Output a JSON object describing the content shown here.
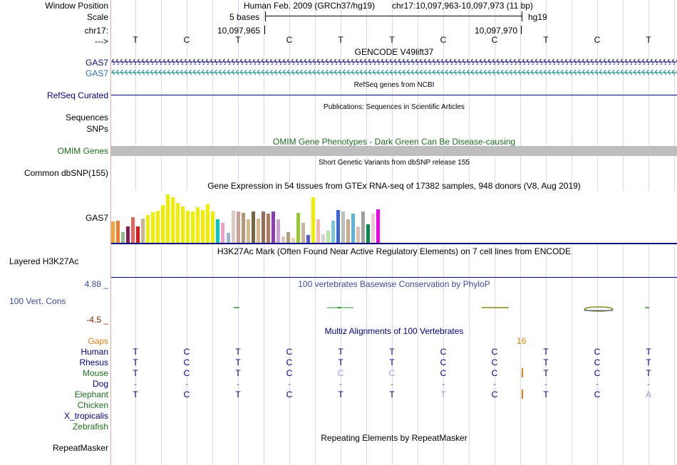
{
  "header": {
    "assembly_label": "Human Feb. 2009 (GRCh37/hg19)",
    "position_label": "chr17:10,097,963-10,097,973 (11 bp)",
    "scale_label": "5 bases",
    "assembly_tag": "hg19",
    "coord_left": "10,097,965",
    "coord_right": "10,097,970"
  },
  "side_labels": {
    "window_position": "Window Position",
    "scale": "Scale",
    "chrom": "chr17:",
    "strand": "--->",
    "gas7_a": "GAS7",
    "gas7_b": "GAS7",
    "refseq": "RefSeq Curated",
    "sequences": "Sequences",
    "snps": "SNPs",
    "omim": "OMIM Genes",
    "dbsnp": "Common dbSNP(155)",
    "gtex_gene": "GAS7",
    "h3k27ac": "Layered H3K27Ac",
    "phylop_max": "4.88 _",
    "cons": "100 Vert. Cons",
    "phylop_min": "-4.5 _",
    "gaps": "Gaps",
    "human": "Human",
    "rhesus": "Rhesus",
    "mouse": "Mouse",
    "dog": "Dog",
    "elephant": "Elephant",
    "chicken": "Chicken",
    "xtrop": "X_tropicalis",
    "zebrafish": "Zebrafish",
    "repeatmasker": "RepeatMasker"
  },
  "track_titles": {
    "gencode": "GENCODE V49lift37",
    "refseq": "RefSeq genes from NCBI",
    "publications": "Publications: Sequences in Scientific Articles",
    "omim": "OMIM Gene Phenotypes - Dark Green Can Be Disease-causing",
    "dbsnp": "Short Genetic Variants from dbSNP release 155",
    "gtex": "Gene Expression in 54 tissues from GTEx RNA-seq of 17382 samples, 948 donors (V8, Aug 2019)",
    "h3k27ac": "H3K27Ac Mark (Often Found Near Active Regulatory Elements) on 7 cell lines from ENCODE",
    "phylop": "100 vertebrates Basewise Conservation by PhyloP",
    "multiz": "Multiz Alignments of 100 Vertebrates",
    "repeatmasker": "Repeating Elements by RepeatMasker"
  },
  "gap_count": "16",
  "sequence": {
    "ruler": [
      "T",
      "C",
      "T",
      "C",
      "T",
      "T",
      "C",
      "C",
      "T",
      "C",
      "T"
    ],
    "human": [
      "T",
      "C",
      "T",
      "C",
      "T",
      "T",
      "C",
      "C",
      "T",
      "C",
      "T"
    ],
    "rhesus": [
      "T",
      "C",
      "T",
      "C",
      "T",
      "T",
      "C",
      "C",
      "T",
      "C",
      "T"
    ],
    "mouse": [
      "T",
      "C",
      "T",
      "C",
      "C",
      "C",
      "C",
      "C",
      "T",
      "C",
      "T"
    ],
    "dog": [
      "-",
      "-",
      "-",
      "-",
      "-",
      "-",
      "-",
      "-",
      "-",
      "-",
      "-"
    ],
    "elephant": [
      "T",
      "C",
      "T",
      "C",
      "T",
      "T",
      "T",
      "C",
      "T",
      "C",
      "A"
    ]
  },
  "colors": {
    "track_label": "#000080",
    "gencode_blue": "#0c0c78",
    "gencode_teal": "#0e8a8a",
    "omim_gray": "#bebebe",
    "omim_text": "#1c6e1c",
    "phylop_blue": "#3e4c9a",
    "gap_orange": "#e08010",
    "grid": "#d8d8f0"
  },
  "gtex_bars": [
    {
      "v": 0.41,
      "c": "#f4a23c"
    },
    {
      "v": 0.43,
      "c": "#f47a2c"
    },
    {
      "v": 0.21,
      "c": "#8fbc8f"
    },
    {
      "v": 0.32,
      "c": "#8b1a52"
    },
    {
      "v": 0.49,
      "c": "#e8645c"
    },
    {
      "v": 0.31,
      "c": "#dd1919"
    },
    {
      "v": 0.46,
      "c": "#c8b496"
    },
    {
      "v": 0.53,
      "c": "#eeee00"
    },
    {
      "v": 0.59,
      "c": "#eeee00"
    },
    {
      "v": 0.62,
      "c": "#eeee00"
    },
    {
      "v": 0.72,
      "c": "#eeee00"
    },
    {
      "v": 0.93,
      "c": "#eeee00"
    },
    {
      "v": 0.87,
      "c": "#eeee00"
    },
    {
      "v": 0.77,
      "c": "#eeee00"
    },
    {
      "v": 0.7,
      "c": "#eeee00"
    },
    {
      "v": 0.62,
      "c": "#eeee00"
    },
    {
      "v": 0.6,
      "c": "#eeee00"
    },
    {
      "v": 0.69,
      "c": "#eeee00"
    },
    {
      "v": 0.63,
      "c": "#eeee00"
    },
    {
      "v": 0.74,
      "c": "#eeee00"
    },
    {
      "v": 0.6,
      "c": "#eeee00"
    },
    {
      "v": 0.45,
      "c": "#00c8c8"
    },
    {
      "v": 0.38,
      "c": "#f0a0c8"
    },
    {
      "v": 0.19,
      "c": "#a0b4d2"
    },
    {
      "v": 0.62,
      "c": "#e0c8c0"
    },
    {
      "v": 0.6,
      "c": "#c8a096"
    },
    {
      "v": 0.57,
      "c": "#b49678"
    },
    {
      "v": 0.45,
      "c": "#d2bc8c"
    },
    {
      "v": 0.6,
      "c": "#786446"
    },
    {
      "v": 0.47,
      "c": "#dcb48c"
    },
    {
      "v": 0.6,
      "c": "#966e5a"
    },
    {
      "v": 0.56,
      "c": "#b4785a"
    },
    {
      "v": 0.6,
      "c": "#8c3cb4"
    },
    {
      "v": 0.45,
      "c": "#c8a0d2"
    },
    {
      "v": 0.13,
      "c": "#d8c8c0"
    },
    {
      "v": 0.2,
      "c": "#b49c80"
    },
    {
      "v": 0.09,
      "c": "#e6d6b4"
    },
    {
      "v": 0.57,
      "c": "#96c832"
    },
    {
      "v": 0.38,
      "c": "#c8b4a0"
    },
    {
      "v": 0.15,
      "c": "#5a5ad2"
    },
    {
      "v": 0.87,
      "c": "#eeee00"
    },
    {
      "v": 0.45,
      "c": "#f5b4b4"
    },
    {
      "v": 0.16,
      "c": "#d2d2d2"
    },
    {
      "v": 0.23,
      "c": "#b4e6a0"
    },
    {
      "v": 0.42,
      "c": "#78c8dc"
    },
    {
      "v": 0.63,
      "c": "#3c64dc"
    },
    {
      "v": 0.6,
      "c": "#bebebe"
    },
    {
      "v": 0.45,
      "c": "#c8aa8c"
    },
    {
      "v": 0.56,
      "c": "#5ab4dc"
    },
    {
      "v": 0.32,
      "c": "#ddc0b0"
    },
    {
      "v": 0.6,
      "c": "#a0a0a0"
    },
    {
      "v": 0.36,
      "c": "#008c46"
    },
    {
      "v": 0.56,
      "c": "#f0c8d2"
    },
    {
      "v": 0.65,
      "c": "#ee00ee"
    }
  ]
}
